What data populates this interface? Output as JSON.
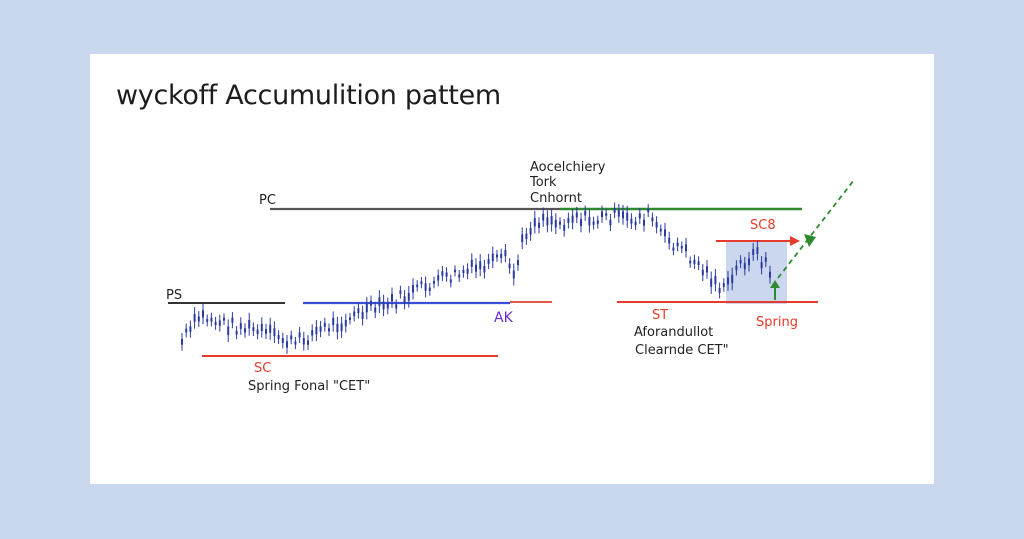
{
  "title": "wyckoff Accumulition pattem",
  "labels": {
    "pc": "PC",
    "ps": "PS",
    "ar_top_1": "Aocelchiery",
    "ar_top_2": "Tork",
    "ar_top_3": "Cnhornt",
    "ak": "AK",
    "sc": "SC",
    "spring_final": "Spring Fonal \"CET\"",
    "st": "ST",
    "accum_1": "Aforandullot",
    "accum_2": "Clearnde CET\"",
    "sos": "SC8",
    "spring": "Spring"
  },
  "colors": {
    "background": "#c9d8ee",
    "candles": "#2b3a9e",
    "blue_line": "#3b4fd6",
    "red_line": "#e43b2c",
    "green_line": "#2f8a2f",
    "gray_line": "#555555",
    "label_red": "#e43b2c",
    "label_purple": "#6a2bd9",
    "shade": "#b8c9ea"
  }
}
